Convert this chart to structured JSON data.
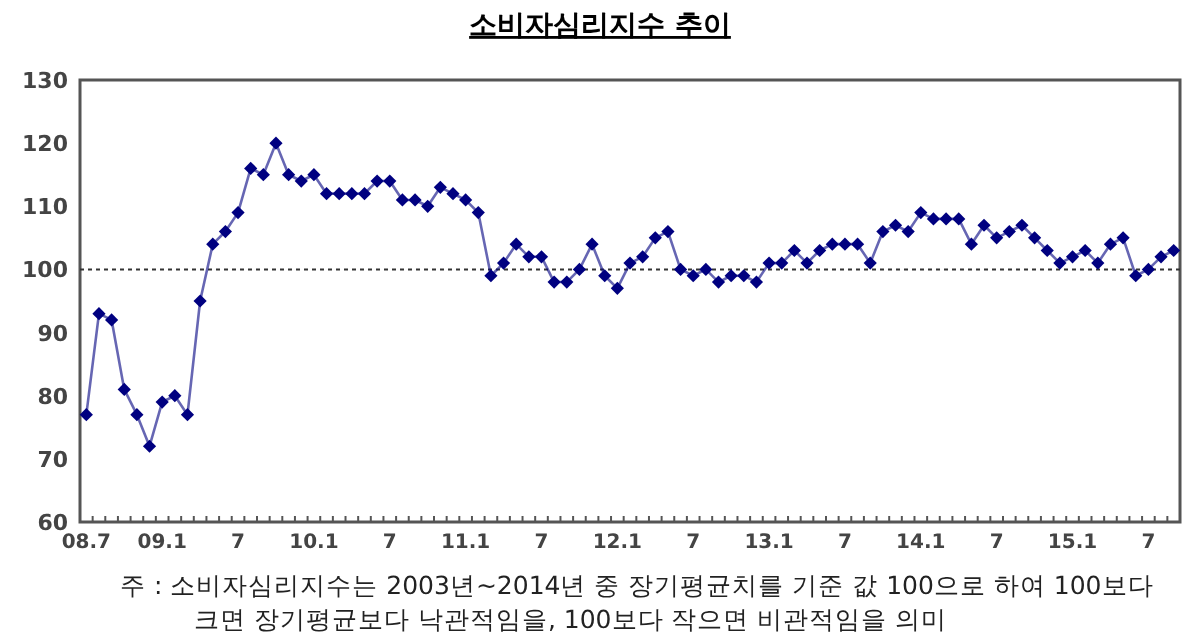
{
  "chart_data": {
    "type": "line",
    "title": "소비자심리지수 추이",
    "categories": [
      "08.7",
      null,
      null,
      null,
      null,
      null,
      "09.1",
      null,
      null,
      null,
      null,
      null,
      "7",
      null,
      null,
      null,
      null,
      null,
      "10.1",
      null,
      null,
      null,
      null,
      null,
      "7",
      null,
      null,
      null,
      null,
      null,
      "11.1",
      null,
      null,
      null,
      null,
      null,
      "7",
      null,
      null,
      null,
      null,
      null,
      "12.1",
      null,
      null,
      null,
      null,
      null,
      "7",
      null,
      null,
      null,
      null,
      null,
      "13.1",
      null,
      null,
      null,
      null,
      null,
      "7",
      null,
      null,
      null,
      null,
      null,
      "14.1",
      null,
      null,
      null,
      null,
      null,
      "7",
      null,
      null,
      null,
      null,
      null,
      "15.1",
      null,
      null,
      null,
      null,
      null,
      "7",
      null,
      null
    ],
    "series": [
      {
        "color": "#000080",
        "values": [
          77,
          93,
          92,
          81,
          77,
          72,
          79,
          80,
          77,
          95,
          104,
          106,
          109,
          116,
          115,
          120,
          115,
          114,
          115,
          112,
          112,
          112,
          112,
          114,
          114,
          111,
          111,
          110,
          113,
          112,
          111,
          109,
          99,
          101,
          104,
          102,
          102,
          98,
          98,
          100,
          104,
          99,
          97,
          101,
          102,
          105,
          106,
          100,
          99,
          100,
          98,
          99,
          99,
          98,
          101,
          101,
          103,
          101,
          103,
          104,
          104,
          104,
          101,
          106,
          107,
          106,
          109,
          108,
          108,
          108,
          104,
          107,
          105,
          106,
          107,
          105,
          103,
          101,
          102,
          103,
          101,
          104,
          105,
          99,
          100,
          102,
          103
        ]
      }
    ],
    "ylim": [
      60,
      130
    ],
    "yticks": [
      60,
      70,
      80,
      90,
      100,
      110,
      120,
      130
    ],
    "marker": "diamond",
    "line_style": "solid",
    "grid": false,
    "ref_lines": [
      {
        "axis": "y",
        "value": 100,
        "color": "#333333",
        "line_style": "dotted"
      }
    ],
    "annotations": [
      "주 : 소비자심리지수는 2003년~2014년 중 장기평균치를 기준 값 100으로 하여 100보다",
      "크면 장기평균보다 낙관적임을, 100보다 작으면 비관적임을 의미"
    ]
  }
}
